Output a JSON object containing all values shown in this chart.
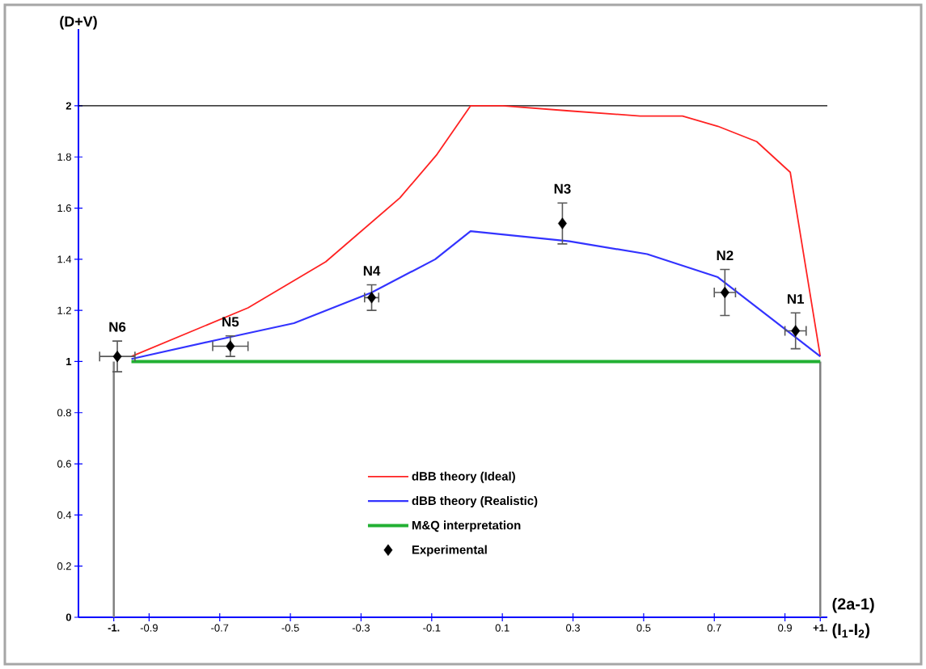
{
  "chart_data": {
    "type": "line",
    "xlabel": "(I$_{1}$-I$_{2}$)",
    "ylabel": "(D+V)",
    "annotations": [
      "(2a-1)"
    ],
    "xlim": [
      -1.1,
      1.02
    ],
    "ylim": [
      0,
      2.3
    ],
    "xticks": [
      {
        "value": -1,
        "label": "-1."
      },
      -0.9,
      -0.7,
      -0.5,
      -0.3,
      -0.1,
      0.1,
      0.3,
      0.5,
      0.7,
      0.9,
      {
        "value": 1,
        "label": "+1."
      }
    ],
    "yticks": [
      0,
      0.2,
      0.4,
      0.6,
      0.8,
      1,
      1.2,
      1.4,
      1.6,
      1.8,
      2
    ],
    "grid": false,
    "legend": "bottom",
    "ref_lines": [
      {
        "axis": "y",
        "value": 2,
        "color": "#000000"
      },
      {
        "axis": "x",
        "value": -1,
        "color": "#808080"
      },
      {
        "axis": "x",
        "value": 1,
        "color": "#808080"
      }
    ],
    "series": [
      {
        "name": "dBB theory (Ideal)",
        "color": "#ff2222",
        "marker": "none",
        "x": [
          -0.95,
          -0.62,
          -0.4,
          -0.19,
          -0.085,
          0.01,
          0.1,
          0.29,
          0.49,
          0.61,
          0.71,
          0.82,
          0.915,
          1.0
        ],
        "values": [
          1.02,
          1.21,
          1.39,
          1.64,
          1.81,
          2.0,
          2.0,
          1.98,
          1.96,
          1.96,
          1.92,
          1.86,
          1.74,
          1.02
        ]
      },
      {
        "name": "dBB theory (Realistic)",
        "color": "#3333ff",
        "marker": "none",
        "x": [
          -0.95,
          -0.69,
          -0.49,
          -0.27,
          -0.09,
          0.01,
          0.29,
          0.51,
          0.71,
          0.85,
          1.0
        ],
        "values": [
          1.01,
          1.09,
          1.15,
          1.27,
          1.4,
          1.51,
          1.47,
          1.42,
          1.33,
          1.18,
          1.02
        ]
      },
      {
        "name": "M&Q interpretation",
        "color": "#22b033",
        "marker": "none",
        "x": [
          -0.95,
          1.0
        ],
        "values": [
          1.0,
          1.0
        ]
      },
      {
        "name": "Experimental",
        "type": "scatter",
        "color": "#000000",
        "marker": "diamond",
        "x": [
          -0.99,
          -0.67,
          -0.27,
          0.27,
          0.73,
          0.93
        ],
        "values": [
          1.02,
          1.06,
          1.25,
          1.54,
          1.27,
          1.12
        ],
        "errors": [
          0.06,
          0.04,
          0.05,
          0.08,
          0.09,
          0.07
        ],
        "xerrors": [
          0.05,
          0.05,
          0.02,
          null,
          0.03,
          0.03
        ],
        "value_labels": [
          "N6",
          "N5",
          "N4",
          "N3",
          "N2",
          "N1"
        ]
      }
    ]
  }
}
